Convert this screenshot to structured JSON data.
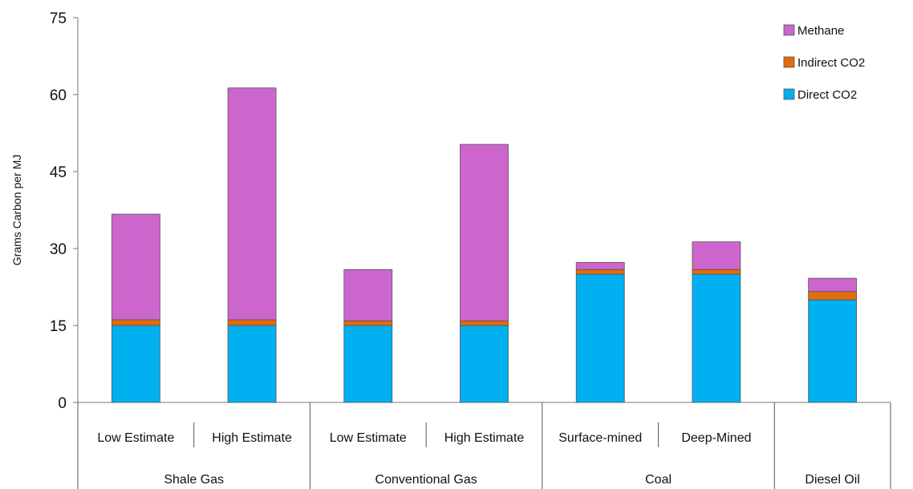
{
  "chart_data": {
    "type": "bar",
    "stacked": true,
    "ylabel": "Grams Carbon per MJ",
    "ylim": [
      0,
      75
    ],
    "yticks": [
      0,
      15,
      30,
      45,
      60,
      75
    ],
    "categories": [
      "Low Estimate",
      "High Estimate",
      "Low Estimate",
      "High Estimate",
      "Surface-mined",
      "Deep-Mined",
      ""
    ],
    "groups": [
      {
        "label": "Shale Gas",
        "span": [
          0,
          1
        ]
      },
      {
        "label": "Conventional Gas",
        "span": [
          2,
          3
        ]
      },
      {
        "label": "Coal",
        "span": [
          4,
          5
        ]
      },
      {
        "label": "Diesel Oil",
        "span": [
          6,
          6
        ]
      }
    ],
    "series": [
      {
        "name": "Direct CO2",
        "color": "#00b0f0",
        "values": [
          15,
          15,
          15,
          15,
          25,
          25,
          20
        ]
      },
      {
        "name": "Indirect CO2",
        "color": "#e46c0a",
        "values": [
          1.1,
          1.1,
          0.9,
          0.9,
          0.9,
          0.9,
          1.6
        ]
      },
      {
        "name": "Methane",
        "color": "#cc66cc",
        "values": [
          20.6,
          45.2,
          10,
          34.4,
          1.4,
          5.4,
          2.6
        ]
      }
    ],
    "legend": {
      "placement": "top-right",
      "order": [
        "Methane",
        "Indirect CO2",
        "Direct CO2"
      ]
    },
    "grid": false
  }
}
